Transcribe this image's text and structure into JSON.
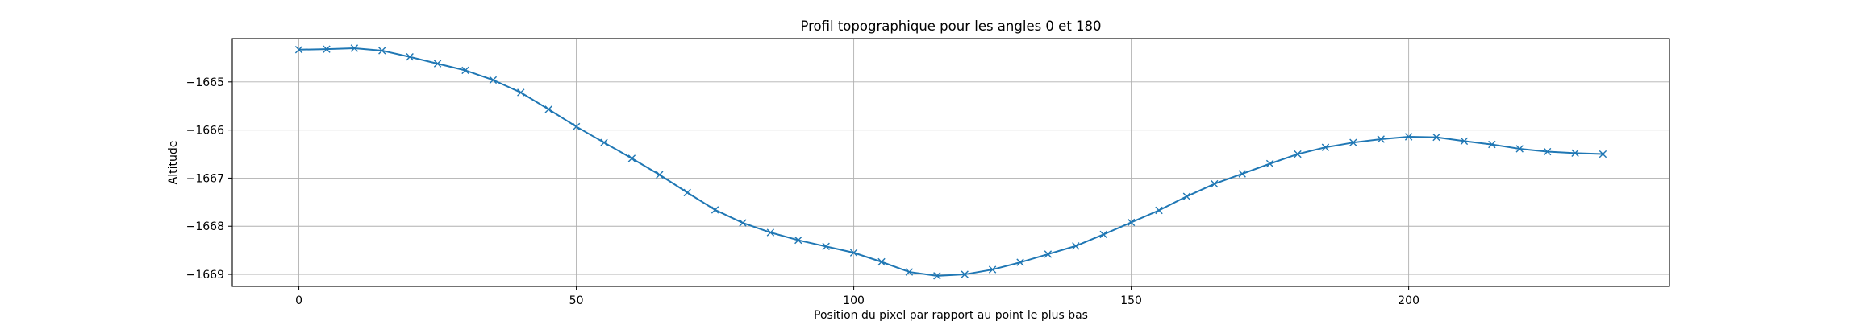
{
  "chart_data": {
    "type": "line",
    "title": "Profil topographique pour les angles 0 et 180",
    "xlabel": "Position du pixel par rapport au point le plus bas",
    "ylabel": "Altitude",
    "xlim": [
      -12,
      247
    ],
    "ylim": [
      -1669.25,
      -1664.1
    ],
    "xticks": [
      0,
      50,
      100,
      150,
      200
    ],
    "yticks": [
      -1669,
      -1668,
      -1667,
      -1666,
      -1665
    ],
    "grid": true,
    "marker": "x",
    "line_color": "#1f77b4",
    "series": [
      {
        "x": [
          0,
          5,
          10,
          15,
          20,
          25,
          30,
          35,
          40,
          45,
          50,
          55,
          60,
          65,
          70,
          75,
          80,
          85,
          90,
          95,
          100,
          105,
          110,
          115,
          120,
          125,
          130,
          135,
          140,
          145,
          150,
          155,
          160,
          165,
          170,
          175,
          180,
          185,
          190,
          195,
          200,
          205,
          210,
          215,
          220,
          225,
          230,
          235
        ],
        "values": [
          -1664.33,
          -1664.32,
          -1664.3,
          -1664.35,
          -1664.48,
          -1664.62,
          -1664.76,
          -1664.96,
          -1665.22,
          -1665.57,
          -1665.93,
          -1666.26,
          -1666.59,
          -1666.93,
          -1667.3,
          -1667.66,
          -1667.93,
          -1668.13,
          -1668.29,
          -1668.42,
          -1668.55,
          -1668.74,
          -1668.95,
          -1669.03,
          -1669.0,
          -1668.9,
          -1668.75,
          -1668.58,
          -1668.41,
          -1668.17,
          -1667.92,
          -1667.67,
          -1667.38,
          -1667.12,
          -1666.91,
          -1666.7,
          -1666.5,
          -1666.36,
          -1666.26,
          -1666.19,
          -1666.14,
          -1666.15,
          -1666.23,
          -1666.3,
          -1666.39,
          -1666.45,
          -1666.48,
          -1666.5
        ]
      }
    ]
  }
}
